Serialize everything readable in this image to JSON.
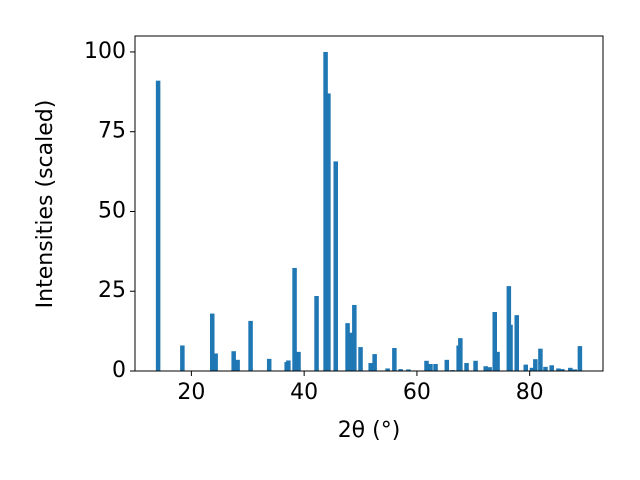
{
  "chart_data": {
    "type": "bar",
    "xlabel": "2θ (°)",
    "ylabel": "Intensities (scaled)",
    "x": [
      14.1,
      18.4,
      23.7,
      24.3,
      27.5,
      28.2,
      30.5,
      33.8,
      36.9,
      37.2,
      38.3,
      39.0,
      42.2,
      43.8,
      44.3,
      45.6,
      47.7,
      48.4,
      48.9,
      50.0,
      51.8,
      52.5,
      54.8,
      56.0,
      57.1,
      58.5,
      61.7,
      62.4,
      63.3,
      65.3,
      66.3,
      67.4,
      67.7,
      68.8,
      70.4,
      72.2,
      72.9,
      73.8,
      74.3,
      76.3,
      76.6,
      77.7,
      79.3,
      80.4,
      81.0,
      81.9,
      82.8,
      83.9,
      85.1,
      85.8,
      87.2,
      88.0,
      88.9
    ],
    "values": [
      91,
      8,
      18,
      5.5,
      6.2,
      3.5,
      15.7,
      3.8,
      2.8,
      3.3,
      32.3,
      6,
      23.5,
      100,
      87,
      65.7,
      15,
      12,
      20.7,
      7.5,
      2.5,
      5.3,
      0.8,
      7.2,
      0.6,
      0.5,
      3.2,
      2.2,
      2.2,
      3.5,
      0.3,
      8,
      10.3,
      2.5,
      3.2,
      1.5,
      1.2,
      18.5,
      6,
      26.6,
      14.5,
      17.5,
      2,
      1,
      3.7,
      7,
      1.3,
      1.8,
      0.8,
      0.6,
      1,
      0.5,
      7.8
    ],
    "color": "#1f77b4",
    "xlim": [
      10,
      93
    ],
    "xticks": [
      20,
      40,
      60,
      80
    ],
    "ylim": [
      0,
      105
    ],
    "yticks": [
      0,
      25,
      50,
      75,
      100
    ],
    "grid": false
  }
}
